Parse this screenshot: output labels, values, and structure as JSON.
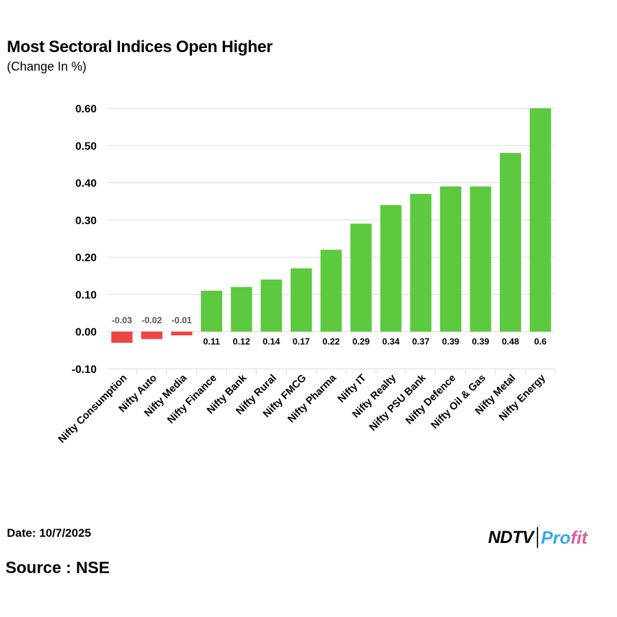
{
  "header": {
    "title": "Most Sectoral Indices Open Higher",
    "subtitle": "(Change In %)"
  },
  "footer": {
    "date": "Date: 10/7/2025",
    "source": "Source : NSE",
    "logo_left": "NDTV",
    "logo_right_a": "Pro",
    "logo_right_b": "fit"
  },
  "colors": {
    "positive": "#5cc93f",
    "negative": "#ee4444",
    "grid": "#d9d9d9"
  },
  "chart_data": {
    "type": "bar",
    "title": "Most Sectoral Indices Open Higher",
    "subtitle": "(Change In %)",
    "xlabel": "",
    "ylabel": "",
    "ylim": [
      -0.1,
      0.6
    ],
    "yticks": [
      -0.1,
      0.0,
      0.1,
      0.2,
      0.3,
      0.4,
      0.5,
      0.6
    ],
    "ytick_labels": [
      "-0.10",
      "0.00",
      "0.10",
      "0.20",
      "0.30",
      "0.40",
      "0.50",
      "0.60"
    ],
    "grid": true,
    "categories": [
      "Nifty Consumption",
      "Nifty Auto",
      "Nifty Media",
      "Nifty Finance",
      "Nifty Bank",
      "Nifty Rural",
      "Nifty FMCG",
      "Nifty Pharma",
      "Nifty IT",
      "Nifty Realty",
      "Nifty PSU Bank",
      "Nifty Defence",
      "Nifty Oil & Gas",
      "Nifty Metal",
      "Nifty Energy"
    ],
    "values": [
      -0.03,
      -0.02,
      -0.01,
      0.11,
      0.12,
      0.14,
      0.17,
      0.22,
      0.29,
      0.34,
      0.37,
      0.39,
      0.39,
      0.48,
      0.6
    ],
    "value_labels": [
      "-0.03",
      "-0.02",
      "-0.01",
      "0.11",
      "0.12",
      "0.14",
      "0.17",
      "0.22",
      "0.29",
      "0.34",
      "0.37",
      "0.39",
      "0.39",
      "0.48",
      "0.6"
    ]
  }
}
